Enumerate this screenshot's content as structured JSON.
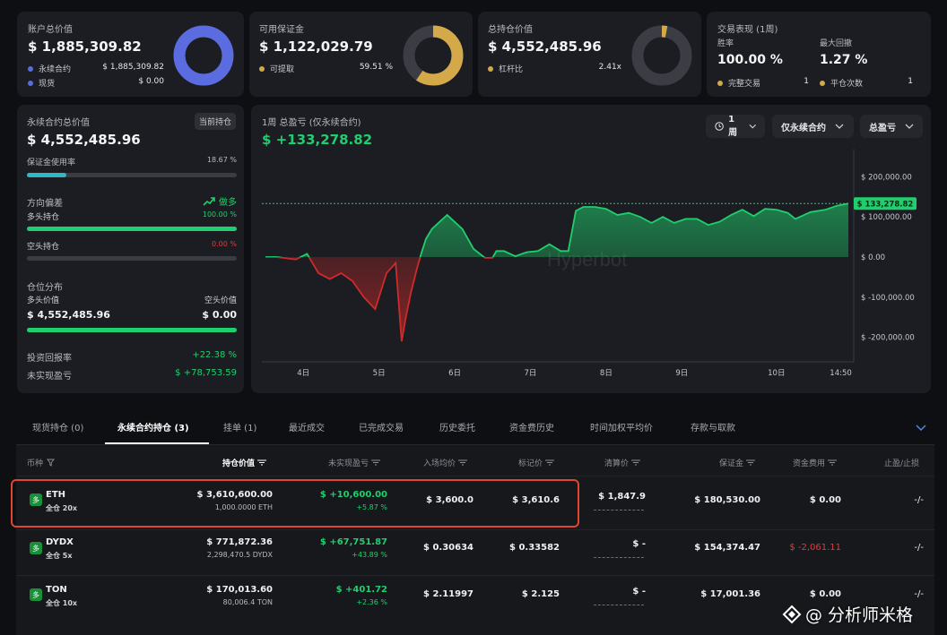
{
  "colors": {
    "accent_green": "#1fcf6d",
    "red": "#e23b3b",
    "blue": "#5b6be0",
    "gold": "#d4a94a",
    "teal": "#2fb8c6",
    "highlight_box": "#e0452f"
  },
  "card1": {
    "title": "账户总价值",
    "value": "$ 1,885,309.82",
    "rows": [
      {
        "label": "永续合约",
        "value": "$ 1,885,309.82"
      },
      {
        "label": "现货",
        "value": "$ 0.00"
      }
    ],
    "fill": 1.0
  },
  "card2": {
    "title": "可用保证金",
    "value": "$ 1,122,029.79",
    "row": {
      "label": "可提取",
      "value": "59.51 %"
    },
    "fill": 0.5951
  },
  "card3": {
    "title": "总持仓价值",
    "value": "$ 4,552,485.96",
    "row": {
      "label": "杠杆比",
      "value": "2.41x"
    },
    "fill": 0.03
  },
  "card4": {
    "title": "交易表现 (1周)",
    "win_label": "胜率",
    "win_value": "100.00 %",
    "dd_label": "最大回撤",
    "dd_value": "1.27 %",
    "rows": [
      {
        "label": "完整交易",
        "value": "1"
      },
      {
        "label": "平仓次数",
        "value": "1"
      }
    ]
  },
  "left_panel": {
    "title": "永续合约总价值",
    "badge": "当前持仓",
    "value": "$ 4,552,485.96",
    "margin_label": "保证金使用率",
    "margin_value": "18.67 %",
    "margin_fill": 0.1867,
    "direction_label": "方向偏差",
    "direction_value": "做多",
    "long_label": "多头持仓",
    "long_value": "100.00 %",
    "long_fill": 1.0,
    "short_label": "空头持仓",
    "short_value": "0.00 %",
    "short_fill": 0.0,
    "dist_label": "仓位分布",
    "long_val_label": "多头价值",
    "short_val_label": "空头价值",
    "long_val": "$ 4,552,485.96",
    "short_val": "$ 0.00",
    "dist_fill": 1.0,
    "roi_label": "投资回报率",
    "roi_value": "+22.38 %",
    "upnl_label": "未实现盈亏",
    "upnl_value": "$ +78,753.59"
  },
  "pnl_chart_header": {
    "title": "1周 总盈亏 (仅永续合约)",
    "value": "$ +133,278.82",
    "range_btn": "1周",
    "filter_btn": "仅永续合约",
    "metric_btn": "总盈亏",
    "watermark": "Hyperbot"
  },
  "chart_data": {
    "type": "area",
    "title": "1周 总盈亏 (仅永续合约)",
    "x_ticks": [
      "4日",
      "5日",
      "6日",
      "7日",
      "8日",
      "9日",
      "10日",
      "14:50"
    ],
    "y_ticks": [
      "$ 200,000.00",
      "$ 100,000.00",
      "$ 0.00",
      "$ -100,000.00",
      "$ -200,000.00"
    ],
    "ylim": [
      -250000,
      250000
    ],
    "last_value_label": "$ 133,278.82",
    "reference_value": 133278,
    "x": [
      0,
      0.15,
      0.4,
      0.55,
      0.7,
      0.85,
      1.0,
      1.15,
      1.3,
      1.45,
      1.6,
      1.72,
      1.8,
      1.86,
      1.92,
      2.0,
      2.06,
      2.12,
      2.2,
      2.4,
      2.6,
      2.75,
      2.9,
      3.0,
      3.05,
      3.15,
      3.3,
      3.45,
      3.6,
      3.75,
      3.9,
      4.0,
      4.1,
      4.2,
      4.35,
      4.5,
      4.65,
      4.8,
      4.95,
      5.1,
      5.25,
      5.4,
      5.55,
      5.7,
      5.85,
      6.0,
      6.15,
      6.3,
      6.45,
      6.6,
      6.75,
      6.9,
      7.0,
      7.2,
      7.4,
      7.55,
      7.7
    ],
    "y": [
      0,
      0,
      -6000,
      8000,
      -40000,
      -55000,
      -40000,
      -60000,
      -100000,
      -130000,
      -40000,
      -15000,
      -210000,
      -145000,
      -90000,
      -30000,
      10000,
      45000,
      70000,
      105000,
      70000,
      20000,
      -2000,
      -2000,
      15000,
      15000,
      2000,
      12000,
      15000,
      32000,
      15000,
      15000,
      115000,
      125000,
      125000,
      120000,
      105000,
      110000,
      100000,
      85000,
      100000,
      85000,
      95000,
      95000,
      80000,
      88000,
      105000,
      118000,
      102000,
      120000,
      118000,
      110000,
      95000,
      112000,
      118000,
      128000,
      133278
    ],
    "x_tick_positions": [
      0.5,
      1.5,
      2.5,
      3.5,
      4.5,
      5.5,
      6.75,
      7.6
    ]
  },
  "tabs": [
    "现货持仓 (0)",
    "永续合约持仓 (3)",
    "挂单 (1)",
    "最近成交",
    "已完成交易",
    "历史委托",
    "资金费历史",
    "时间加权平均价",
    "存款与取款"
  ],
  "table": {
    "headers": [
      "币种",
      "持仓价值",
      "未实现盈亏",
      "入场均价",
      "标记价",
      "清算价",
      "保证金",
      "资金费用",
      "止盈/止损"
    ],
    "rows": [
      {
        "coin": "ETH",
        "sub": "全仓 20x",
        "value": "$ 3,610,600.00",
        "size": "1,000.0000 ETH",
        "upnl": "$ +10,600.00",
        "upnl_pct": "+5.87 %",
        "entry": "$ 3,600.0",
        "mark": "$ 3,610.6",
        "liq": "$ 1,847.9",
        "margin": "$ 180,530.00",
        "funding": "$ 0.00",
        "tpsl": "-/-"
      },
      {
        "coin": "DYDX",
        "sub": "全仓 5x",
        "value": "$ 771,872.36",
        "size": "2,298,470.5 DYDX",
        "upnl": "$ +67,751.87",
        "upnl_pct": "+43.89 %",
        "entry": "$ 0.30634",
        "mark": "$ 0.33582",
        "liq": "$ -",
        "margin": "$ 154,374.47",
        "funding": "$ -2,061.11",
        "tpsl": "-/-"
      },
      {
        "coin": "TON",
        "sub": "全仓 10x",
        "value": "$ 170,013.60",
        "size": "80,006.4 TON",
        "upnl": "$ +401.72",
        "upnl_pct": "+2.36 %",
        "entry": "$ 2.11997",
        "mark": "$ 2.125",
        "liq": "$ -",
        "margin": "$ 17,001.36",
        "funding": "$ 0.00",
        "tpsl": "-/-"
      }
    ]
  },
  "coin_glyph": "多",
  "watermark_text": "@ 分析师米格"
}
